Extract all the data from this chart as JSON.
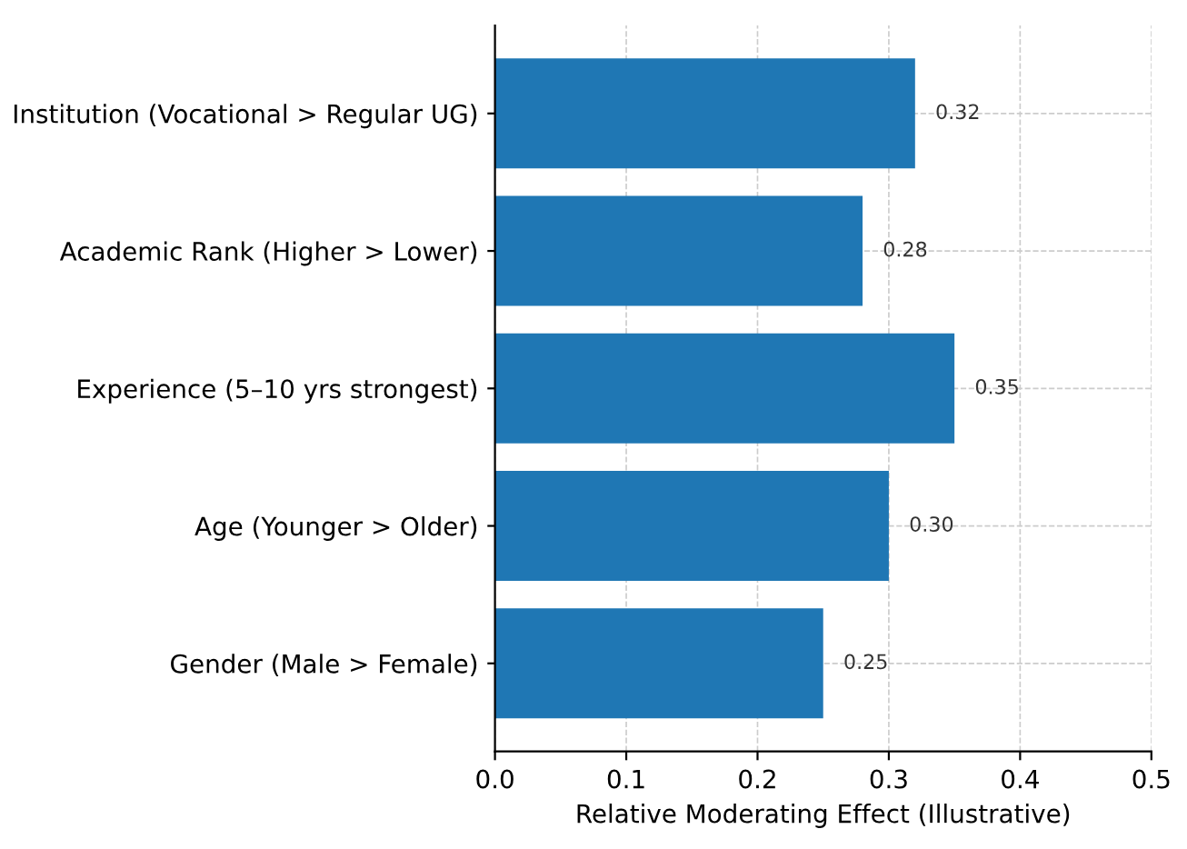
{
  "chart_data": {
    "type": "bar",
    "orientation": "horizontal",
    "xlabel": "Relative Moderating Effect (Illustrative)",
    "categories": [
      "Institution (Vocational > Regular UG)",
      "Academic Rank (Higher > Lower)",
      "Experience (5–10 yrs strongest)",
      "Age (Younger > Older)",
      "Gender (Male > Female)"
    ],
    "values": [
      0.32,
      0.28,
      0.35,
      0.3,
      0.25
    ],
    "value_labels": [
      "0.32",
      "0.28",
      "0.35",
      "0.30",
      "0.25"
    ],
    "color": "#1f77b4",
    "xlim": [
      0,
      0.5
    ],
    "xticks": [
      {
        "value": 0,
        "label": "0.0"
      },
      0.1,
      0.2,
      0.3,
      0.4,
      0.5
    ],
    "grid": true
  }
}
